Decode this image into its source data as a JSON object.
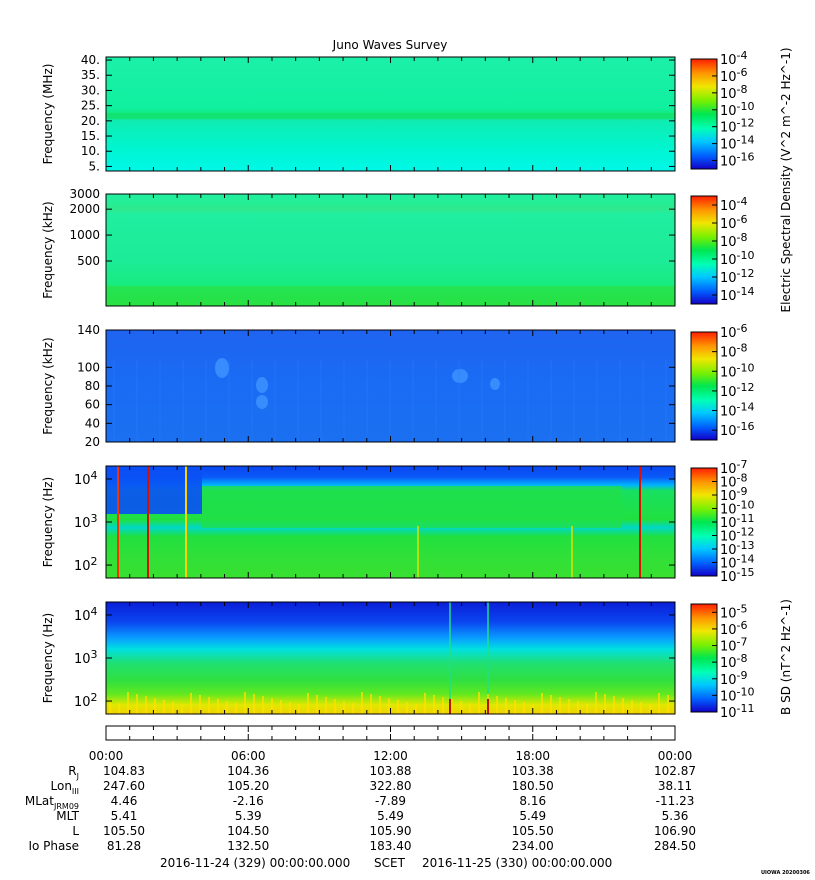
{
  "title": "Juno Waves Survey",
  "colors": {
    "colormap": [
      "#1400c8",
      "#0060ff",
      "#00c8ff",
      "#00ffb4",
      "#00e650",
      "#78f000",
      "#f0e600",
      "#ff9600",
      "#ff1e00"
    ]
  },
  "chart_data": [
    {
      "type": "heatmap",
      "id": "panel1",
      "ylabel": "Frequency (MHz)",
      "ylim": [
        3.5,
        41
      ],
      "yscale": "linear",
      "yticks": [
        5,
        10,
        15,
        20,
        25,
        30,
        35,
        40
      ],
      "ytick_labels": [
        "5.",
        "10.",
        "15.",
        "20.",
        "25.",
        "30.",
        "35.",
        "40."
      ],
      "colorbar": {
        "range_exp": [
          -17,
          -4
        ],
        "tick_exps": [
          -4,
          -6,
          -8,
          -10,
          -12,
          -14,
          -16
        ]
      },
      "dominant_level": 0.38,
      "feature": {
        "name": "band",
        "freq": 21.5,
        "level": 0.46
      }
    },
    {
      "type": "heatmap",
      "id": "panel2",
      "ylabel": "Frequency (kHz)",
      "ylim": [
        150,
        3000
      ],
      "yscale": "log",
      "yticks": [
        500,
        1000,
        2000,
        3000
      ],
      "ytick_labels": [
        "500",
        "1000",
        "2000",
        "3000"
      ],
      "colorbar": {
        "range_exp": [
          -15,
          -3
        ],
        "tick_exps": [
          -4,
          -6,
          -8,
          -10,
          -12,
          -14
        ]
      },
      "dominant_level": 0.42,
      "feature": {
        "name": "low-frequency enhancement",
        "freq": 200,
        "level": 0.5
      }
    },
    {
      "type": "heatmap",
      "id": "panel3",
      "ylabel": "Frequency (kHz)",
      "ylim": [
        20,
        140
      ],
      "yscale": "linear",
      "yticks": [
        20,
        40,
        60,
        80,
        100,
        140
      ],
      "ytick_labels": [
        "20",
        "40",
        "60",
        "80",
        "100",
        "140"
      ],
      "colorbar": {
        "range_exp": [
          -17,
          -6
        ],
        "tick_exps": [
          -6,
          -8,
          -10,
          -12,
          -14,
          -16
        ]
      },
      "dominant_level": 0.18
    },
    {
      "type": "heatmap",
      "id": "panel4",
      "ylabel": "Frequency (Hz)",
      "ylim": [
        50,
        20000
      ],
      "yscale": "log",
      "yticks": [
        100,
        1000,
        10000
      ],
      "ytick_labels": [
        "10^2",
        "10^3",
        "10^4"
      ],
      "colorbar": {
        "range_exp": [
          -15,
          -7
        ],
        "tick_exps": [
          -7,
          -8,
          -9,
          -10,
          -11,
          -12,
          -13,
          -14,
          -15
        ]
      },
      "dominant_level": 0.5
    },
    {
      "type": "heatmap",
      "id": "panel5",
      "ylabel": "Frequency (Hz)",
      "ylim": [
        50,
        20000
      ],
      "yscale": "log",
      "yticks": [
        100,
        1000,
        10000
      ],
      "ytick_labels": [
        "10^2",
        "10^3",
        "10^4"
      ],
      "colorbar": {
        "range_exp": [
          -11,
          -4.5
        ],
        "tick_exps": [
          -5,
          -6,
          -7,
          -8,
          -9,
          -10,
          -11
        ]
      },
      "dominant_level": 0.5
    }
  ],
  "colorbar_labels": {
    "electric": "Electric Spectral Density (V^2 m^-2 Hz^-1)",
    "magnetic": "B SD (nT^2 Hz^-1)"
  },
  "ephemeris": {
    "times": [
      "00:00",
      "06:00",
      "12:00",
      "18:00",
      "00:00"
    ],
    "rows": [
      {
        "label": "R",
        "sub": "J",
        "values": [
          "104.83",
          "104.36",
          "103.88",
          "103.38",
          "102.87"
        ]
      },
      {
        "label": "Lon",
        "sub": "III",
        "values": [
          "247.60",
          "105.20",
          "322.80",
          "180.50",
          "38.11"
        ]
      },
      {
        "label": "MLat",
        "sub": "JRM09",
        "values": [
          "4.46",
          "-2.16",
          "-7.89",
          "8.16",
          "-11.23"
        ]
      },
      {
        "label": "MLT",
        "sub": "",
        "values": [
          "5.41",
          "5.39",
          "5.49",
          "5.49",
          "5.36"
        ]
      },
      {
        "label": "L",
        "sub": "",
        "values": [
          "105.50",
          "104.50",
          "105.90",
          "105.50",
          "106.90"
        ]
      },
      {
        "label": "Io Phase",
        "sub": "",
        "values": [
          "81.28",
          "132.50",
          "183.40",
          "234.00",
          "284.50"
        ]
      }
    ]
  },
  "scet": {
    "start": "2016-11-24 (329) 00:00:00.000",
    "label": "SCET",
    "end": "2016-11-25 (330) 00:00:00.000"
  },
  "stamp": "UIOWA 20200306"
}
